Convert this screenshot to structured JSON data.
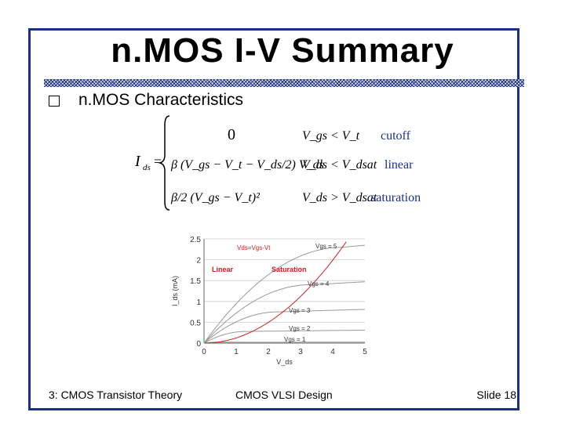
{
  "slide": {
    "title": "n.MOS I-V Summary",
    "bullet": "n.MOS Characteristics"
  },
  "equation": {
    "lhs_var": "I",
    "lhs_sub": "ds",
    "equals": "=",
    "cases": [
      {
        "expr": "0",
        "condition": "V_gs < V_t",
        "region": "cutoff"
      },
      {
        "expr": "β (V_gs − V_t − V_ds/2) V_ds",
        "condition": "V_ds < V_dsat",
        "region": "linear"
      },
      {
        "expr": "β/2 (V_gs − V_t)²",
        "condition": "V_ds > V_dsat",
        "region": "saturation"
      }
    ]
  },
  "chart_data": {
    "type": "line",
    "xlabel": "V_ds",
    "ylabel": "I_ds (mA)",
    "xlim": [
      0,
      5
    ],
    "ylim": [
      0,
      2.5
    ],
    "x_ticks": [
      "0",
      "1",
      "2",
      "3",
      "4",
      "5"
    ],
    "y_ticks": [
      "0",
      "0.5",
      "1",
      "1.5",
      "2",
      "2.5"
    ],
    "grid": "horizontal",
    "annotations": [
      "Vds=Vgs-Vt",
      "Linear",
      "Saturation",
      "Vgs = 5",
      "Vgs = 4",
      "Vgs = 3",
      "Vgs = 2",
      "Vgs = 1"
    ],
    "vdd": 5,
    "vt": 0.7,
    "series": [
      {
        "name": "Vgs = 5",
        "vgs": 5,
        "isat": 2.3
      },
      {
        "name": "Vgs = 4",
        "vgs": 4,
        "isat": 1.4
      },
      {
        "name": "Vgs = 3",
        "vgs": 3,
        "isat": 0.75
      },
      {
        "name": "Vgs = 2",
        "vgs": 2,
        "isat": 0.28
      },
      {
        "name": "Vgs = 1",
        "vgs": 1,
        "isat": 0.02
      }
    ],
    "colors": {
      "curves": "#999999",
      "boundary": "#cc2020",
      "grid": "#cccccc"
    }
  },
  "footer": {
    "left": "3: CMOS Transistor Theory",
    "center": "CMOS VLSI Design",
    "right": "Slide 18"
  },
  "colors": {
    "frame": "#1a2f8c",
    "rule": "#1a2f8c",
    "region_label": "#1a2f8c"
  }
}
